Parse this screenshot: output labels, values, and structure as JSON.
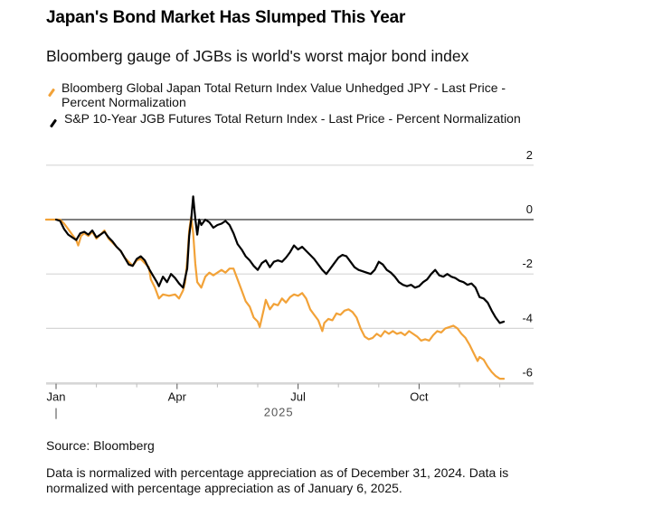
{
  "chart_data": {
    "type": "line",
    "title": "Japan's Bond Market Has Slumped This Year",
    "subtitle": "Bloomberg gauge of JGBs is world's worst major bond index",
    "xlabel": "2025",
    "ylabel": "",
    "ylim": [
      -6,
      2
    ],
    "yticks": [
      2,
      0,
      -2,
      -4,
      -6
    ],
    "ytick_labels": [
      "2",
      "0",
      "-2",
      "-4",
      "-6"
    ],
    "xlim_months": [
      -0.25,
      11.8
    ],
    "xticks_months": [
      0,
      3,
      6,
      9
    ],
    "xtick_labels": [
      "Jan",
      "Apr",
      "Jul",
      "Oct"
    ],
    "minor_xticks_months": [
      1,
      2,
      4,
      5,
      7,
      8,
      10,
      11
    ],
    "grid": true,
    "zero_line": true,
    "legend_position": "top-left",
    "x_unit": "months since Jan 1, 2025",
    "series": [
      {
        "name": "Bloomberg Global Japan Total Return Index Value Unhedged JPY - Last Price - Percent Normalization",
        "color": "#f2a238",
        "points": [
          [
            -0.25,
            0.0
          ],
          [
            0.0,
            0.0
          ],
          [
            0.1,
            0.0
          ],
          [
            0.2,
            -0.15
          ],
          [
            0.3,
            -0.35
          ],
          [
            0.4,
            -0.55
          ],
          [
            0.5,
            -0.75
          ],
          [
            0.55,
            -0.95
          ],
          [
            0.62,
            -0.6
          ],
          [
            0.7,
            -0.5
          ],
          [
            0.8,
            -0.6
          ],
          [
            0.9,
            -0.45
          ],
          [
            1.0,
            -0.7
          ],
          [
            1.1,
            -0.55
          ],
          [
            1.2,
            -0.4
          ],
          [
            1.3,
            -0.7
          ],
          [
            1.4,
            -0.85
          ],
          [
            1.5,
            -1.0
          ],
          [
            1.6,
            -1.15
          ],
          [
            1.7,
            -1.4
          ],
          [
            1.8,
            -1.55
          ],
          [
            1.9,
            -1.7
          ],
          [
            2.0,
            -1.5
          ],
          [
            2.1,
            -1.45
          ],
          [
            2.2,
            -1.6
          ],
          [
            2.3,
            -1.75
          ],
          [
            2.35,
            -2.2
          ],
          [
            2.45,
            -2.5
          ],
          [
            2.55,
            -2.9
          ],
          [
            2.65,
            -2.75
          ],
          [
            2.8,
            -2.8
          ],
          [
            2.95,
            -2.75
          ],
          [
            3.05,
            -2.9
          ],
          [
            3.15,
            -2.6
          ],
          [
            3.2,
            -2.3
          ],
          [
            3.25,
            -1.5
          ],
          [
            3.3,
            -0.4
          ],
          [
            3.35,
            0.1
          ],
          [
            3.4,
            -0.5
          ],
          [
            3.45,
            -1.6
          ],
          [
            3.5,
            -2.3
          ],
          [
            3.6,
            -2.5
          ],
          [
            3.7,
            -2.1
          ],
          [
            3.8,
            -1.95
          ],
          [
            3.9,
            -2.05
          ],
          [
            4.0,
            -1.95
          ],
          [
            4.1,
            -1.85
          ],
          [
            4.2,
            -1.95
          ],
          [
            4.3,
            -1.8
          ],
          [
            4.4,
            -1.8
          ],
          [
            4.5,
            -2.2
          ],
          [
            4.6,
            -2.6
          ],
          [
            4.7,
            -3.0
          ],
          [
            4.8,
            -3.2
          ],
          [
            4.9,
            -3.6
          ],
          [
            5.0,
            -3.75
          ],
          [
            5.05,
            -3.95
          ],
          [
            5.15,
            -3.3
          ],
          [
            5.2,
            -2.95
          ],
          [
            5.3,
            -3.3
          ],
          [
            5.4,
            -3.1
          ],
          [
            5.5,
            -3.15
          ],
          [
            5.6,
            -2.9
          ],
          [
            5.7,
            -3.05
          ],
          [
            5.8,
            -2.85
          ],
          [
            5.9,
            -2.75
          ],
          [
            6.0,
            -2.8
          ],
          [
            6.1,
            -2.7
          ],
          [
            6.2,
            -2.9
          ],
          [
            6.3,
            -3.3
          ],
          [
            6.4,
            -3.5
          ],
          [
            6.5,
            -3.7
          ],
          [
            6.6,
            -4.1
          ],
          [
            6.65,
            -3.8
          ],
          [
            6.75,
            -3.65
          ],
          [
            6.85,
            -3.7
          ],
          [
            6.95,
            -3.45
          ],
          [
            7.05,
            -3.5
          ],
          [
            7.15,
            -3.35
          ],
          [
            7.25,
            -3.3
          ],
          [
            7.35,
            -3.4
          ],
          [
            7.45,
            -3.6
          ],
          [
            7.55,
            -4.0
          ],
          [
            7.65,
            -4.3
          ],
          [
            7.75,
            -4.4
          ],
          [
            7.85,
            -4.35
          ],
          [
            7.95,
            -4.2
          ],
          [
            8.05,
            -4.3
          ],
          [
            8.15,
            -4.1
          ],
          [
            8.25,
            -4.2
          ],
          [
            8.35,
            -4.1
          ],
          [
            8.45,
            -4.2
          ],
          [
            8.55,
            -4.15
          ],
          [
            8.65,
            -4.25
          ],
          [
            8.75,
            -4.1
          ],
          [
            8.85,
            -4.2
          ],
          [
            8.95,
            -4.3
          ],
          [
            9.05,
            -4.45
          ],
          [
            9.15,
            -4.4
          ],
          [
            9.25,
            -4.45
          ],
          [
            9.35,
            -4.25
          ],
          [
            9.45,
            -4.1
          ],
          [
            9.55,
            -4.15
          ],
          [
            9.65,
            -4.0
          ],
          [
            9.75,
            -3.95
          ],
          [
            9.85,
            -3.9
          ],
          [
            9.95,
            -4.0
          ],
          [
            10.05,
            -4.2
          ],
          [
            10.15,
            -4.35
          ],
          [
            10.25,
            -4.6
          ],
          [
            10.35,
            -4.9
          ],
          [
            10.45,
            -5.2
          ],
          [
            10.5,
            -5.05
          ],
          [
            10.6,
            -5.15
          ],
          [
            10.7,
            -5.4
          ],
          [
            10.8,
            -5.6
          ],
          [
            10.9,
            -5.75
          ],
          [
            11.0,
            -5.85
          ],
          [
            11.1,
            -5.85
          ]
        ]
      },
      {
        "name": "S&P 10-Year JGB Futures Total Return Index - Last Price - Percent Normalization",
        "color": "#000000",
        "points": [
          [
            0.0,
            0.0
          ],
          [
            0.1,
            -0.05
          ],
          [
            0.2,
            -0.35
          ],
          [
            0.3,
            -0.55
          ],
          [
            0.4,
            -0.65
          ],
          [
            0.5,
            -0.75
          ],
          [
            0.6,
            -0.5
          ],
          [
            0.7,
            -0.45
          ],
          [
            0.8,
            -0.55
          ],
          [
            0.9,
            -0.4
          ],
          [
            1.0,
            -0.65
          ],
          [
            1.1,
            -0.55
          ],
          [
            1.2,
            -0.45
          ],
          [
            1.3,
            -0.65
          ],
          [
            1.4,
            -0.8
          ],
          [
            1.5,
            -1.0
          ],
          [
            1.6,
            -1.15
          ],
          [
            1.7,
            -1.4
          ],
          [
            1.8,
            -1.65
          ],
          [
            1.9,
            -1.7
          ],
          [
            2.0,
            -1.45
          ],
          [
            2.1,
            -1.35
          ],
          [
            2.2,
            -1.5
          ],
          [
            2.3,
            -1.8
          ],
          [
            2.4,
            -2.05
          ],
          [
            2.5,
            -2.3
          ],
          [
            2.55,
            -2.45
          ],
          [
            2.65,
            -2.1
          ],
          [
            2.75,
            -2.3
          ],
          [
            2.85,
            -2.0
          ],
          [
            2.95,
            -2.15
          ],
          [
            3.05,
            -2.35
          ],
          [
            3.15,
            -2.5
          ],
          [
            3.2,
            -2.15
          ],
          [
            3.25,
            -1.8
          ],
          [
            3.3,
            -0.6
          ],
          [
            3.35,
            0.0
          ],
          [
            3.4,
            0.85
          ],
          [
            3.45,
            0.05
          ],
          [
            3.5,
            -0.55
          ],
          [
            3.55,
            0.0
          ],
          [
            3.6,
            -0.2
          ],
          [
            3.7,
            0.0
          ],
          [
            3.8,
            -0.1
          ],
          [
            3.9,
            -0.3
          ],
          [
            4.0,
            -0.2
          ],
          [
            4.1,
            -0.15
          ],
          [
            4.2,
            -0.05
          ],
          [
            4.3,
            -0.2
          ],
          [
            4.4,
            -0.5
          ],
          [
            4.5,
            -0.9
          ],
          [
            4.6,
            -1.1
          ],
          [
            4.7,
            -1.35
          ],
          [
            4.8,
            -1.5
          ],
          [
            4.9,
            -1.7
          ],
          [
            5.0,
            -1.85
          ],
          [
            5.1,
            -1.6
          ],
          [
            5.2,
            -1.5
          ],
          [
            5.3,
            -1.75
          ],
          [
            5.4,
            -1.55
          ],
          [
            5.5,
            -1.5
          ],
          [
            5.6,
            -1.55
          ],
          [
            5.7,
            -1.4
          ],
          [
            5.8,
            -1.2
          ],
          [
            5.9,
            -0.95
          ],
          [
            6.0,
            -1.1
          ],
          [
            6.1,
            -1.0
          ],
          [
            6.2,
            -1.15
          ],
          [
            6.3,
            -1.3
          ],
          [
            6.4,
            -1.45
          ],
          [
            6.5,
            -1.65
          ],
          [
            6.6,
            -1.85
          ],
          [
            6.7,
            -2.0
          ],
          [
            6.8,
            -1.8
          ],
          [
            6.9,
            -1.6
          ],
          [
            7.0,
            -1.4
          ],
          [
            7.1,
            -1.3
          ],
          [
            7.2,
            -1.35
          ],
          [
            7.3,
            -1.55
          ],
          [
            7.4,
            -1.75
          ],
          [
            7.5,
            -1.85
          ],
          [
            7.6,
            -1.9
          ],
          [
            7.7,
            -1.95
          ],
          [
            7.8,
            -2.0
          ],
          [
            7.9,
            -1.85
          ],
          [
            8.0,
            -1.55
          ],
          [
            8.1,
            -1.65
          ],
          [
            8.2,
            -1.85
          ],
          [
            8.3,
            -1.95
          ],
          [
            8.4,
            -2.1
          ],
          [
            8.5,
            -2.3
          ],
          [
            8.6,
            -2.4
          ],
          [
            8.7,
            -2.45
          ],
          [
            8.8,
            -2.4
          ],
          [
            8.9,
            -2.5
          ],
          [
            9.0,
            -2.45
          ],
          [
            9.1,
            -2.3
          ],
          [
            9.2,
            -2.2
          ],
          [
            9.3,
            -2.0
          ],
          [
            9.4,
            -1.85
          ],
          [
            9.5,
            -2.05
          ],
          [
            9.6,
            -2.1
          ],
          [
            9.7,
            -2.0
          ],
          [
            9.8,
            -2.1
          ],
          [
            9.9,
            -2.15
          ],
          [
            10.0,
            -2.25
          ],
          [
            10.1,
            -2.3
          ],
          [
            10.2,
            -2.4
          ],
          [
            10.3,
            -2.35
          ],
          [
            10.4,
            -2.5
          ],
          [
            10.5,
            -2.85
          ],
          [
            10.6,
            -2.9
          ],
          [
            10.7,
            -3.05
          ],
          [
            10.8,
            -3.35
          ],
          [
            10.9,
            -3.6
          ],
          [
            11.0,
            -3.8
          ],
          [
            11.1,
            -3.75
          ]
        ]
      }
    ]
  },
  "legend": [
    {
      "label": "Bloomberg Global Japan Total Return Index Value Unhedged JPY - Last Price - Percent Normalization",
      "color": "#f2a238"
    },
    {
      "label": "S&P 10-Year JGB Futures Total Return Index - Last Price - Percent Normalization",
      "color": "#000000"
    }
  ],
  "footer": {
    "source": "Source: Bloomberg",
    "note": "Data is normalized with percentage appreciation as of December 31, 2024. Data is normalized with percentage appreciation as of January 6, 2025."
  }
}
